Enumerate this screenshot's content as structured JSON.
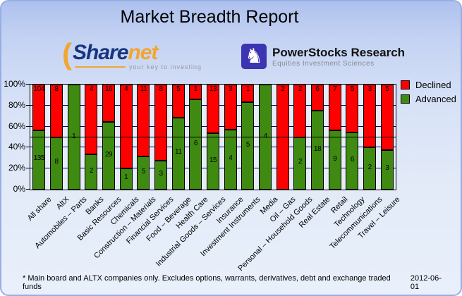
{
  "title": "Market Breadth Report",
  "logos": {
    "sharenet": {
      "text_share": "Share",
      "text_net": "net",
      "tagline": "your key to investing",
      "navy": "#16357f",
      "orange": "#f2a530"
    },
    "powerstocks": {
      "name": "PowerStocks  Research",
      "subtitle": "Equities Investment Sciences",
      "icon_color": "#3c35b2",
      "knight_glyph": "♞"
    }
  },
  "chart_data": {
    "type": "bar",
    "stacked": true,
    "normalized": "percent_of_total",
    "title": "Market Breadth Report",
    "categories": [
      "All share",
      "AltX",
      "Automobiles – Parts",
      "Banks",
      "Basic Resources",
      "Chemicals",
      "Construction – Materials",
      "Financial Services",
      "Food – Beverage",
      "Health Care",
      "Industrial Goods – Services",
      "Insurance",
      "Investment Instruments",
      "Media",
      "Oil – Gas",
      "Personal – Household Goods",
      "Real Estate",
      "Retail",
      "Technology",
      "Telecommunications",
      "Travel – Leisure"
    ],
    "series": [
      {
        "name": "Declined",
        "color": "#ff0000",
        "values": [
          104,
          8,
          0,
          4,
          16,
          4,
          11,
          8,
          5,
          1,
          13,
          3,
          1,
          0,
          2,
          2,
          6,
          7,
          5,
          3,
          5
        ]
      },
      {
        "name": "Advanced",
        "color": "#3f8a10",
        "values": [
          135,
          8,
          1,
          2,
          29,
          1,
          5,
          3,
          11,
          6,
          15,
          4,
          5,
          4,
          0,
          2,
          18,
          9,
          6,
          2,
          3
        ]
      }
    ],
    "ylabel_ticks": [
      "0%",
      "20%",
      "40%",
      "60%",
      "80%",
      "100%"
    ],
    "ylim": [
      0,
      100
    ],
    "gridline_color": "#000080",
    "reference_line_pct": 50,
    "legend_position": "top-right",
    "grid": true
  },
  "footer": {
    "note": "* Main board and ALTX companies only. Excludes options, warrants, derivatives, debt and exchange traded funds",
    "date": "2012-06-01"
  }
}
